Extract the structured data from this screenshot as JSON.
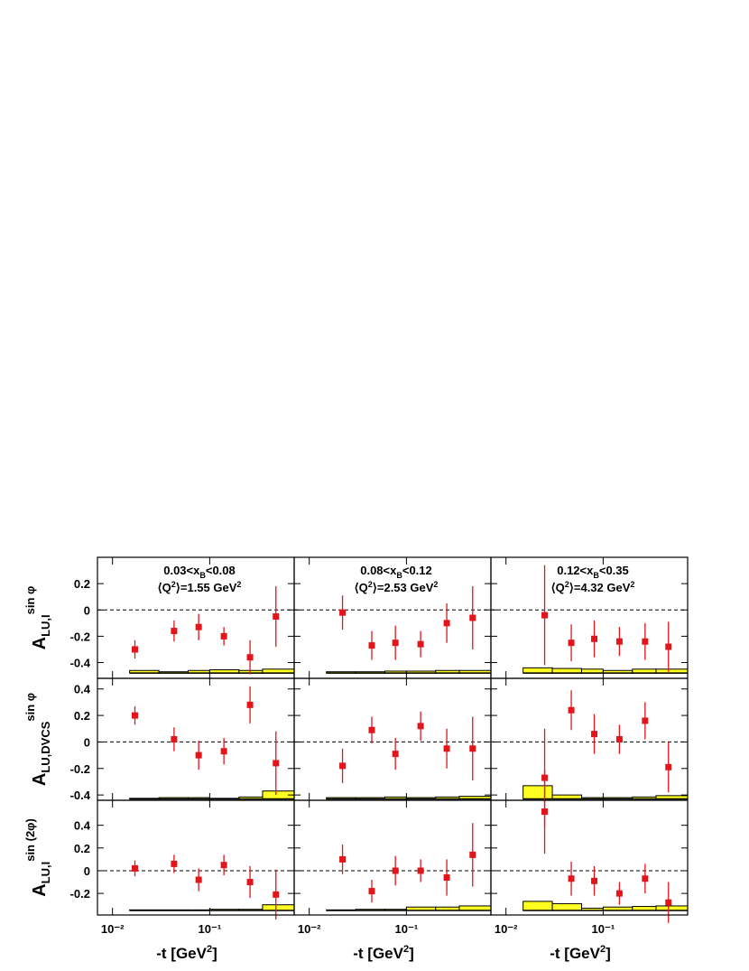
{
  "chart_data": [
    {
      "type": "scatter",
      "annotation": {
        "x_range": [
          "0.03<x",
          "B",
          "<0.08"
        ],
        "q2": [
          "⟨Q",
          "2",
          "⟩=1.55 GeV",
          "2"
        ]
      },
      "ylabel": {
        "base": "A",
        "sub": "LU,I",
        "sup": "sin φ"
      },
      "x": [
        0.017,
        0.043,
        0.077,
        0.14,
        0.26,
        0.48
      ],
      "values": [
        -0.3,
        -0.16,
        -0.13,
        -0.2,
        -0.36,
        -0.05
      ],
      "errors": [
        0.07,
        0.08,
        0.1,
        0.07,
        0.13,
        0.23
      ],
      "bins": [
        0.015,
        0.03,
        0.06,
        0.1,
        0.2,
        0.35,
        0.74
      ],
      "sys_base": -0.48,
      "sys": [
        0.02,
        0.01,
        0.02,
        0.025,
        0.02,
        0.03
      ],
      "xlim": [
        0.007,
        0.74
      ],
      "log_x": true,
      "xticks": [
        {
          "value": 0.01,
          "label": "10⁻²"
        },
        {
          "value": 0.1,
          "label": "10⁻¹"
        }
      ],
      "ylim": [
        -0.52,
        0.4
      ],
      "yticks": [
        0.2,
        0,
        -0.2,
        -0.4
      ],
      "ref_line": 0,
      "color": "#e3151b",
      "sys_color": "#ffff22"
    },
    {
      "type": "scatter",
      "annotation": {
        "x_range": [
          "0.08<x",
          "B",
          "<0.12"
        ],
        "q2": [
          "⟨Q",
          "2",
          "⟩=2.53 GeV",
          "2"
        ]
      },
      "x": [
        0.022,
        0.044,
        0.077,
        0.14,
        0.26,
        0.48
      ],
      "values": [
        -0.02,
        -0.27,
        -0.25,
        -0.26,
        -0.1,
        -0.06
      ],
      "errors": [
        0.13,
        0.11,
        0.13,
        0.1,
        0.15,
        0.24
      ],
      "bins": [
        0.015,
        0.03,
        0.06,
        0.1,
        0.2,
        0.35,
        0.74
      ],
      "sys_base": -0.48,
      "sys": [
        0.01,
        0.01,
        0.015,
        0.015,
        0.02,
        0.02
      ],
      "xlim": [
        0.007,
        0.74
      ],
      "log_x": true,
      "xticks": [
        {
          "value": 0.01,
          "label": "10⁻²"
        },
        {
          "value": 0.1,
          "label": "10⁻¹"
        }
      ],
      "ylim": [
        -0.52,
        0.4
      ],
      "yticks": [
        0.2,
        0,
        -0.2,
        -0.4
      ],
      "ref_line": 0,
      "color": "#e3151b",
      "sys_color": "#ffff22"
    },
    {
      "type": "scatter",
      "annotation": {
        "x_range": [
          "0.12<x",
          "B",
          "<0.35"
        ],
        "q2": [
          "⟨Q",
          "2",
          "⟩=4.32 GeV",
          "2"
        ]
      },
      "x": [
        0.025,
        0.047,
        0.081,
        0.147,
        0.27,
        0.47
      ],
      "values": [
        -0.04,
        -0.25,
        -0.22,
        -0.24,
        -0.24,
        -0.28
      ],
      "errors": [
        0.38,
        0.14,
        0.14,
        0.11,
        0.14,
        0.19
      ],
      "bins": [
        0.015,
        0.03,
        0.06,
        0.1,
        0.2,
        0.35,
        0.74
      ],
      "sys_base": -0.48,
      "sys": [
        0.04,
        0.035,
        0.03,
        0.02,
        0.03,
        0.03
      ],
      "xlim": [
        0.007,
        0.74
      ],
      "log_x": true,
      "xticks": [
        {
          "value": 0.01,
          "label": "10⁻²"
        },
        {
          "value": 0.1,
          "label": "10⁻¹"
        }
      ],
      "ylim": [
        -0.52,
        0.4
      ],
      "yticks": [
        0.2,
        0,
        -0.2,
        -0.4
      ],
      "ref_line": 0,
      "color": "#e3151b",
      "sys_color": "#ffff22"
    },
    {
      "type": "scatter",
      "ylabel": {
        "base": "A",
        "sub": "LU,DVCS",
        "sup": "sin φ"
      },
      "x": [
        0.017,
        0.043,
        0.077,
        0.14,
        0.26,
        0.48
      ],
      "values": [
        0.2,
        0.02,
        -0.1,
        -0.07,
        0.28,
        -0.16
      ],
      "errors": [
        0.07,
        0.09,
        0.11,
        0.1,
        0.14,
        0.24
      ],
      "bins": [
        0.015,
        0.03,
        0.06,
        0.1,
        0.2,
        0.35,
        0.74
      ],
      "sys_base": -0.43,
      "sys": [
        0.005,
        0.01,
        0.01,
        0.005,
        0.015,
        0.06
      ],
      "xlim": [
        0.007,
        0.74
      ],
      "log_x": true,
      "xticks": [
        {
          "value": 0.01,
          "label": "10⁻²"
        },
        {
          "value": 0.1,
          "label": "10⁻¹"
        }
      ],
      "ylim": [
        -0.44,
        0.48
      ],
      "yticks": [
        0.4,
        0.2,
        0,
        -0.2,
        -0.4
      ],
      "ref_line": 0,
      "color": "#e3151b",
      "sys_color": "#ffff22"
    },
    {
      "type": "scatter",
      "x": [
        0.022,
        0.044,
        0.077,
        0.14,
        0.26,
        0.48
      ],
      "values": [
        -0.18,
        0.09,
        -0.09,
        0.12,
        -0.05,
        -0.05
      ],
      "errors": [
        0.13,
        0.1,
        0.12,
        0.11,
        0.15,
        0.24
      ],
      "bins": [
        0.015,
        0.03,
        0.06,
        0.1,
        0.2,
        0.35,
        0.74
      ],
      "sys_base": -0.43,
      "sys": [
        0.01,
        0.01,
        0.015,
        0.01,
        0.015,
        0.02
      ],
      "xlim": [
        0.007,
        0.74
      ],
      "log_x": true,
      "xticks": [
        {
          "value": 0.01,
          "label": "10⁻²"
        },
        {
          "value": 0.1,
          "label": "10⁻¹"
        }
      ],
      "ylim": [
        -0.44,
        0.48
      ],
      "yticks": [
        0.4,
        0.2,
        0,
        -0.2,
        -0.4
      ],
      "ref_line": 0,
      "color": "#e3151b",
      "sys_color": "#ffff22"
    },
    {
      "type": "scatter",
      "x": [
        0.025,
        0.047,
        0.081,
        0.147,
        0.27,
        0.47
      ],
      "values": [
        -0.27,
        0.24,
        0.06,
        0.02,
        0.16,
        -0.19
      ],
      "errors": [
        0.37,
        0.15,
        0.15,
        0.11,
        0.14,
        0.19
      ],
      "bins": [
        0.015,
        0.03,
        0.06,
        0.1,
        0.2,
        0.35,
        0.74
      ],
      "sys_base": -0.43,
      "sys": [
        0.1,
        0.03,
        0.01,
        0.01,
        0.015,
        0.025
      ],
      "xlim": [
        0.007,
        0.74
      ],
      "log_x": true,
      "xticks": [
        {
          "value": 0.01,
          "label": "10⁻²"
        },
        {
          "value": 0.1,
          "label": "10⁻¹"
        }
      ],
      "ylim": [
        -0.44,
        0.48
      ],
      "yticks": [
        0.4,
        0.2,
        0,
        -0.2,
        -0.4
      ],
      "ref_line": 0,
      "color": "#e3151b",
      "sys_color": "#ffff22"
    },
    {
      "type": "scatter",
      "ylabel": {
        "base": "A",
        "sub": "LU,I",
        "sup": "sin (2φ)"
      },
      "xlabel": [
        "-t [GeV",
        "2",
        "]"
      ],
      "x": [
        0.017,
        0.043,
        0.077,
        0.14,
        0.26,
        0.48
      ],
      "values": [
        0.02,
        0.06,
        -0.08,
        0.05,
        -0.1,
        -0.21
      ],
      "errors": [
        0.07,
        0.08,
        0.1,
        0.09,
        0.14,
        0.22
      ],
      "bins": [
        0.015,
        0.03,
        0.06,
        0.1,
        0.2,
        0.35,
        0.74
      ],
      "sys_base": -0.35,
      "sys": [
        0.005,
        0.005,
        0.005,
        0.01,
        0.01,
        0.05
      ],
      "xlim": [
        0.007,
        0.74
      ],
      "log_x": true,
      "xticks": [
        {
          "value": 0.01,
          "label": "10⁻²"
        },
        {
          "value": 0.1,
          "label": "10⁻¹"
        }
      ],
      "ylim": [
        -0.39,
        0.62
      ],
      "yticks": [
        0.4,
        0.2,
        0,
        -0.2
      ],
      "ref_line": 0,
      "color": "#e3151b",
      "sys_color": "#ffff22"
    },
    {
      "type": "scatter",
      "xlabel": [
        "-t [GeV",
        "2",
        "]"
      ],
      "x": [
        0.022,
        0.044,
        0.077,
        0.14,
        0.26,
        0.48
      ],
      "values": [
        0.1,
        -0.18,
        0.0,
        0.0,
        -0.06,
        0.14
      ],
      "errors": [
        0.13,
        0.1,
        0.13,
        0.1,
        0.16,
        0.28
      ],
      "bins": [
        0.015,
        0.03,
        0.06,
        0.1,
        0.2,
        0.35,
        0.74
      ],
      "sys_base": -0.35,
      "sys": [
        0.005,
        0.01,
        0.01,
        0.03,
        0.03,
        0.04
      ],
      "xlim": [
        0.007,
        0.74
      ],
      "log_x": true,
      "xticks": [
        {
          "value": 0.01,
          "label": "10⁻²"
        },
        {
          "value": 0.1,
          "label": "10⁻¹"
        }
      ],
      "ylim": [
        -0.39,
        0.62
      ],
      "yticks": [
        0.4,
        0.2,
        0,
        -0.2
      ],
      "ref_line": 0,
      "color": "#e3151b",
      "sys_color": "#ffff22"
    },
    {
      "type": "scatter",
      "xlabel": [
        "-t [GeV",
        "2",
        "]"
      ],
      "x": [
        0.025,
        0.047,
        0.081,
        0.147,
        0.27,
        0.47
      ],
      "values": [
        0.52,
        -0.07,
        -0.09,
        -0.2,
        -0.07,
        -0.28
      ],
      "errors": [
        0.37,
        0.15,
        0.13,
        0.1,
        0.13,
        0.18
      ],
      "bins": [
        0.015,
        0.03,
        0.06,
        0.1,
        0.2,
        0.35,
        0.74
      ],
      "sys_base": -0.35,
      "sys": [
        0.08,
        0.06,
        0.02,
        0.03,
        0.035,
        0.04
      ],
      "xlim": [
        0.007,
        0.74
      ],
      "log_x": true,
      "xticks": [
        {
          "value": 0.01,
          "label": "10⁻²"
        },
        {
          "value": 0.1,
          "label": "10⁻¹"
        }
      ],
      "ylim": [
        -0.39,
        0.62
      ],
      "yticks": [
        0.4,
        0.2,
        0,
        -0.2
      ],
      "ref_line": 0,
      "color": "#e3151b",
      "sys_color": "#ffff22"
    }
  ]
}
